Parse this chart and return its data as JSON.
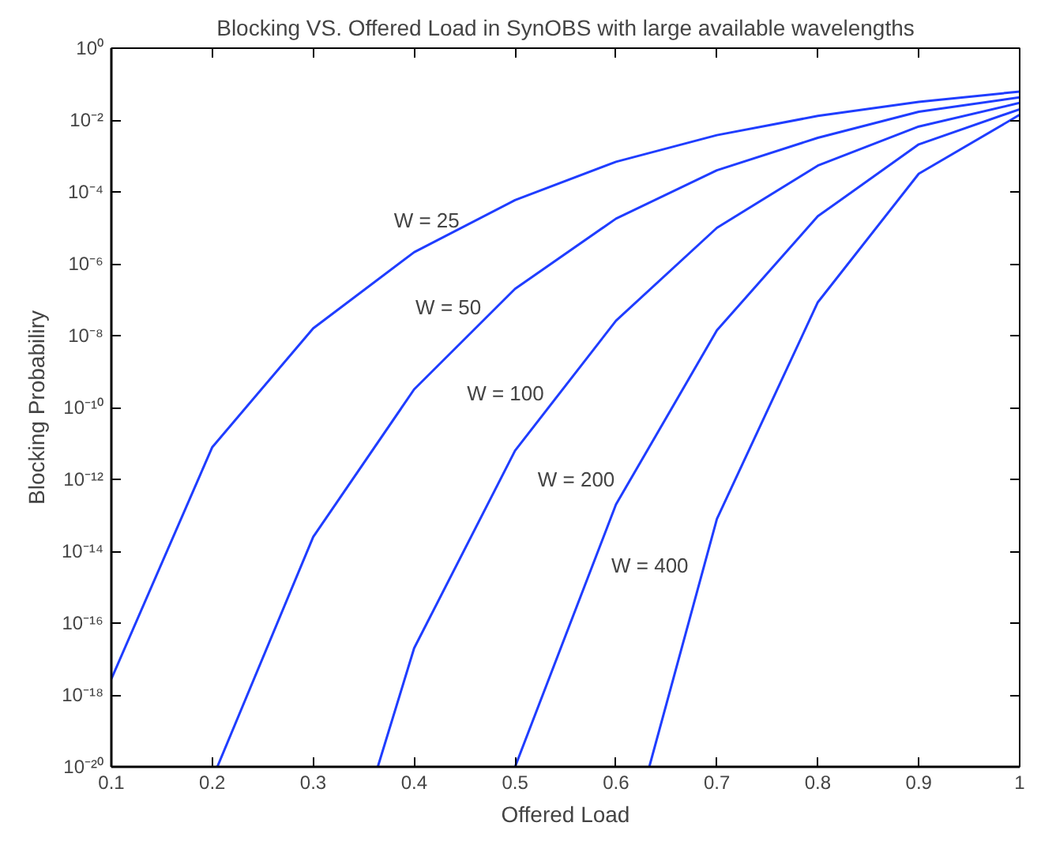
{
  "chart_data": {
    "type": "line",
    "title": "Blocking VS. Offered Load in SynOBS with large available wavelengths",
    "xlabel": "Offered Load",
    "ylabel": "Blocking Probabiliry",
    "log": "y",
    "grid": false,
    "marker": "none",
    "line_style": "solid",
    "xlim": [
      0.1,
      1
    ],
    "xticks": [
      0.1,
      0.2,
      0.3,
      0.4,
      0.5,
      0.6,
      0.7,
      0.8,
      0.9,
      1
    ],
    "ylim": [
      1e-20,
      1
    ],
    "yticks": [
      {
        "value": 1e-20,
        "label": "10⁻²⁰"
      },
      {
        "value": 1e-18,
        "label": "10⁻¹⁸"
      },
      {
        "value": 1e-16,
        "label": "10⁻¹⁶"
      },
      {
        "value": 1e-14,
        "label": "10⁻¹⁴"
      },
      {
        "value": 1e-12,
        "label": "10⁻¹²"
      },
      {
        "value": 1e-10,
        "label": "10⁻¹⁰"
      },
      {
        "value": 1e-08,
        "label": "10⁻⁸"
      },
      {
        "value": 1e-06,
        "label": "10⁻⁶"
      },
      {
        "value": 0.0001,
        "label": "10⁻⁴"
      },
      {
        "value": 0.01,
        "label": "10⁻²"
      },
      {
        "value": 1,
        "label": "10⁰"
      }
    ],
    "series": [
      {
        "name": "W = 25",
        "color": "#1f3dff",
        "x": [
          0.1,
          0.2,
          0.3,
          0.4,
          0.5,
          0.6,
          0.7,
          0.8,
          0.9,
          1
        ],
        "values": [
          2.8e-18,
          7.9e-12,
          1.6e-08,
          2.1e-06,
          5.9e-05,
          0.00069,
          0.0038,
          0.013,
          0.032,
          0.062
        ]
      },
      {
        "name": "W = 50",
        "color": "#1f3dff",
        "x": [
          0.205,
          0.3,
          0.4,
          0.5,
          0.6,
          0.7,
          0.8,
          0.9,
          1
        ],
        "values": [
          1e-20,
          2.5e-14,
          3.2e-10,
          2e-07,
          1.8e-05,
          0.0004,
          0.0032,
          0.017,
          0.043
        ]
      },
      {
        "name": "W = 100",
        "color": "#1f3dff",
        "x": [
          0.364,
          0.4,
          0.5,
          0.6,
          0.7,
          0.8,
          0.9,
          1
        ],
        "values": [
          1e-20,
          2e-17,
          6.3e-12,
          2.6e-08,
          1e-05,
          0.00054,
          0.0066,
          0.03
        ]
      },
      {
        "name": "W = 200",
        "color": "#1f3dff",
        "x": [
          0.5,
          0.6,
          0.7,
          0.8,
          0.9,
          1
        ],
        "values": [
          1e-20,
          2e-13,
          1.4e-08,
          2.1e-05,
          0.0021,
          0.02
        ]
      },
      {
        "name": "W = 400",
        "color": "#1f3dff",
        "x": [
          0.633,
          0.7,
          0.8,
          0.9,
          1
        ],
        "values": [
          1e-20,
          7.9e-14,
          8.5e-08,
          0.00032,
          0.014
        ]
      }
    ]
  }
}
